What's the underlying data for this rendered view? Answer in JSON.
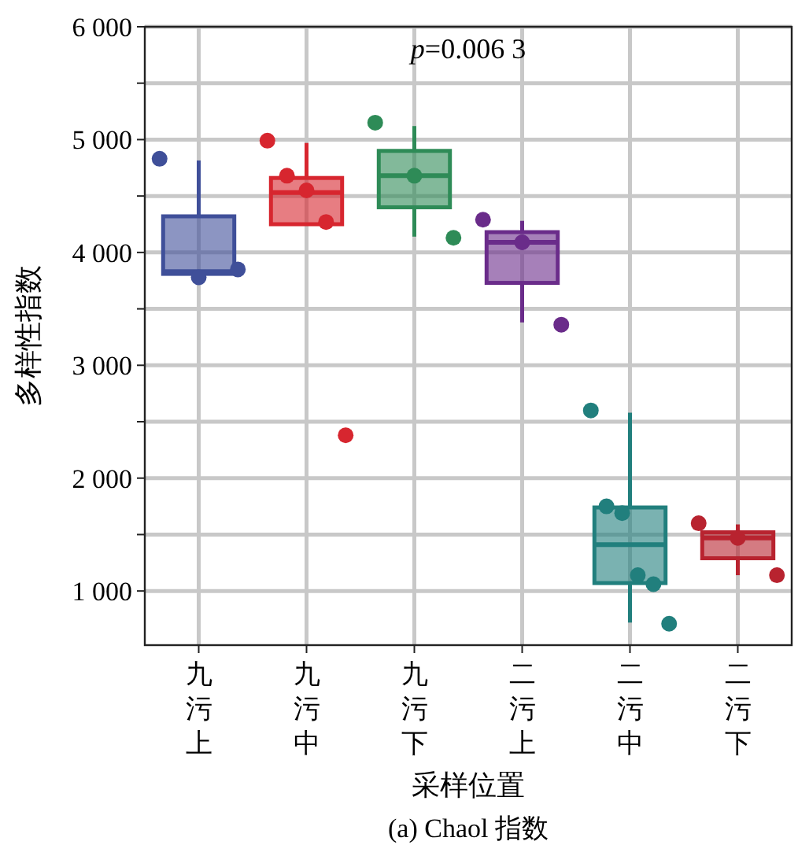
{
  "chart_data": {
    "type": "box",
    "title": "(a) Chaol 指数",
    "xlabel": "采样位置",
    "ylabel": "多样性指数",
    "annotations": [
      "p=0.006 3"
    ],
    "categories": [
      "九污上",
      "九污中",
      "九污下",
      "二污上",
      "二污中",
      "二污下"
    ],
    "ylim": [
      520,
      6000
    ],
    "yticks": [
      {
        "value": 1000,
        "label": "1 000"
      },
      {
        "value": 1500,
        "label": null
      },
      {
        "value": 2000,
        "label": "2 000"
      },
      {
        "value": 2500,
        "label": null
      },
      {
        "value": 3000,
        "label": "3 000"
      },
      {
        "value": 3500,
        "label": null
      },
      {
        "value": 4000,
        "label": "4 000"
      },
      {
        "value": 4500,
        "label": null
      },
      {
        "value": 5000,
        "label": "5 000"
      },
      {
        "value": 5500,
        "label": null
      },
      {
        "value": 6000,
        "label": "6 000"
      }
    ],
    "grid": true,
    "series": [
      {
        "colors": [
          "#3f4f99",
          "#d7262f",
          "#2e8b57",
          "#6a2c8a",
          "#217f7d",
          "#b8232f"
        ],
        "boxes": [
          {
            "low": 3800,
            "q1": 3810,
            "median": 3830,
            "q3": 4320,
            "high": 4815
          },
          {
            "low": 4250,
            "q1": 4250,
            "median": 4530,
            "q3": 4660,
            "high": 4970
          },
          {
            "low": 4140,
            "q1": 4400,
            "median": 4680,
            "q3": 4900,
            "high": 5120
          },
          {
            "low": 3380,
            "q1": 3730,
            "median": 4090,
            "q3": 4180,
            "high": 4280
          },
          {
            "low": 720,
            "q1": 1070,
            "median": 1410,
            "q3": 1740,
            "high": 2580
          },
          {
            "low": 1140,
            "q1": 1290,
            "median": 1470,
            "q3": 1520,
            "high": 1590
          }
        ]
      },
      {
        "type": "scatter",
        "marker": "circle",
        "x": [
          "九污上",
          "九污上",
          "九污上",
          "九污中",
          "九污中",
          "九污中",
          "九污中",
          "九污中",
          "九污下",
          "九污下",
          "九污下",
          "二污上",
          "二污上",
          "二污上",
          "二污中",
          "二污中",
          "二污中",
          "二污中",
          "二污中",
          "二污中",
          "二污下",
          "二污下",
          "二污下"
        ],
        "values": [
          4830,
          3780,
          3850,
          4990,
          4680,
          4550,
          4270,
          2380,
          5150,
          4680,
          4130,
          4290,
          4090,
          3360,
          2600,
          1750,
          1690,
          1140,
          1060,
          710,
          1600,
          1470,
          1140
        ],
        "colors": [
          "#3f4f99",
          "#3f4f99",
          "#3f4f99",
          "#d7262f",
          "#d7262f",
          "#d7262f",
          "#d7262f",
          "#d7262f",
          "#2e8b57",
          "#2e8b57",
          "#2e8b57",
          "#6a2c8a",
          "#6a2c8a",
          "#6a2c8a",
          "#217f7d",
          "#217f7d",
          "#217f7d",
          "#217f7d",
          "#217f7d",
          "#217f7d",
          "#b8232f",
          "#b8232f",
          "#b8232f"
        ]
      }
    ]
  }
}
